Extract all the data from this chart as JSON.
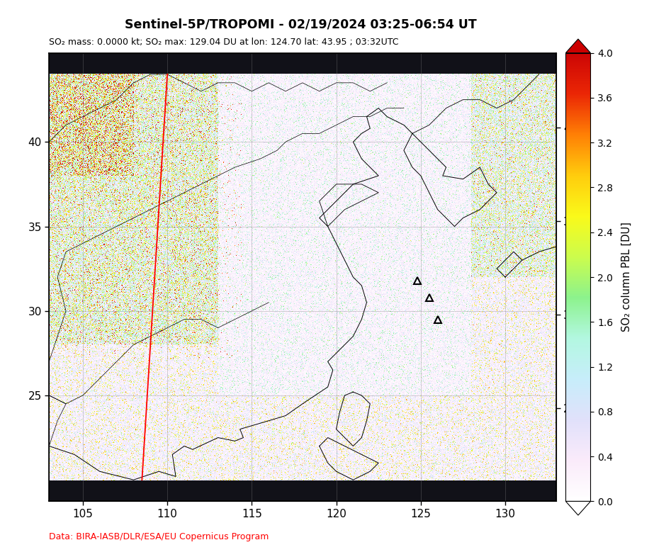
{
  "title": "Sentinel-5P/TROPOMI - 02/19/2024 03:25-06:54 UT",
  "subtitle": "SO₂ mass: 0.0000 kt; SO₂ max: 129.04 DU at lon: 124.70 lat: 43.95 ; 03:32UTC",
  "credit": "Data: BIRA-IASB/DLR/ESA/EU Copernicus Program",
  "lon_min": 103.0,
  "lon_max": 133.0,
  "lat_min": 20.0,
  "lat_max": 44.0,
  "lon_ticks": [
    105,
    110,
    115,
    120,
    125,
    130
  ],
  "lat_ticks": [
    25,
    30,
    35,
    40
  ],
  "colorbar_label": "SO₂ column PBL [DU]",
  "colorbar_min": 0.0,
  "colorbar_max": 4.0,
  "colorbar_ticks": [
    0.0,
    0.4,
    0.8,
    1.2,
    1.6,
    2.0,
    2.4,
    2.8,
    3.2,
    3.6,
    4.0
  ],
  "title_color": "#000000",
  "subtitle_color": "#000000",
  "credit_color": "#ff0000",
  "noise_seed": 42,
  "fig_width": 9.23,
  "fig_height": 7.86,
  "dpi": 100
}
